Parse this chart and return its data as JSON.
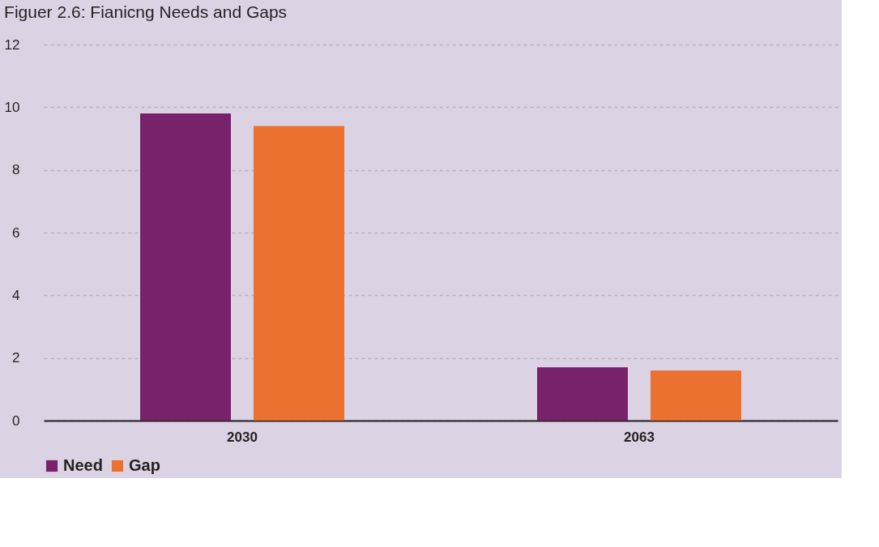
{
  "chart_data": {
    "type": "bar",
    "title": "Figuer 2.6: Fianicng Needs and Gaps",
    "categories": [
      "2030",
      "2063"
    ],
    "series": [
      {
        "name": "Need",
        "color": "#77226b",
        "values": [
          9.8,
          1.7
        ]
      },
      {
        "name": "Gap",
        "color": "#ea7130",
        "values": [
          9.4,
          1.6
        ]
      }
    ],
    "ylim": [
      0,
      12
    ],
    "yticks": [
      0,
      2,
      4,
      6,
      8,
      10,
      12
    ],
    "grid": "y",
    "legend": "bottom"
  }
}
